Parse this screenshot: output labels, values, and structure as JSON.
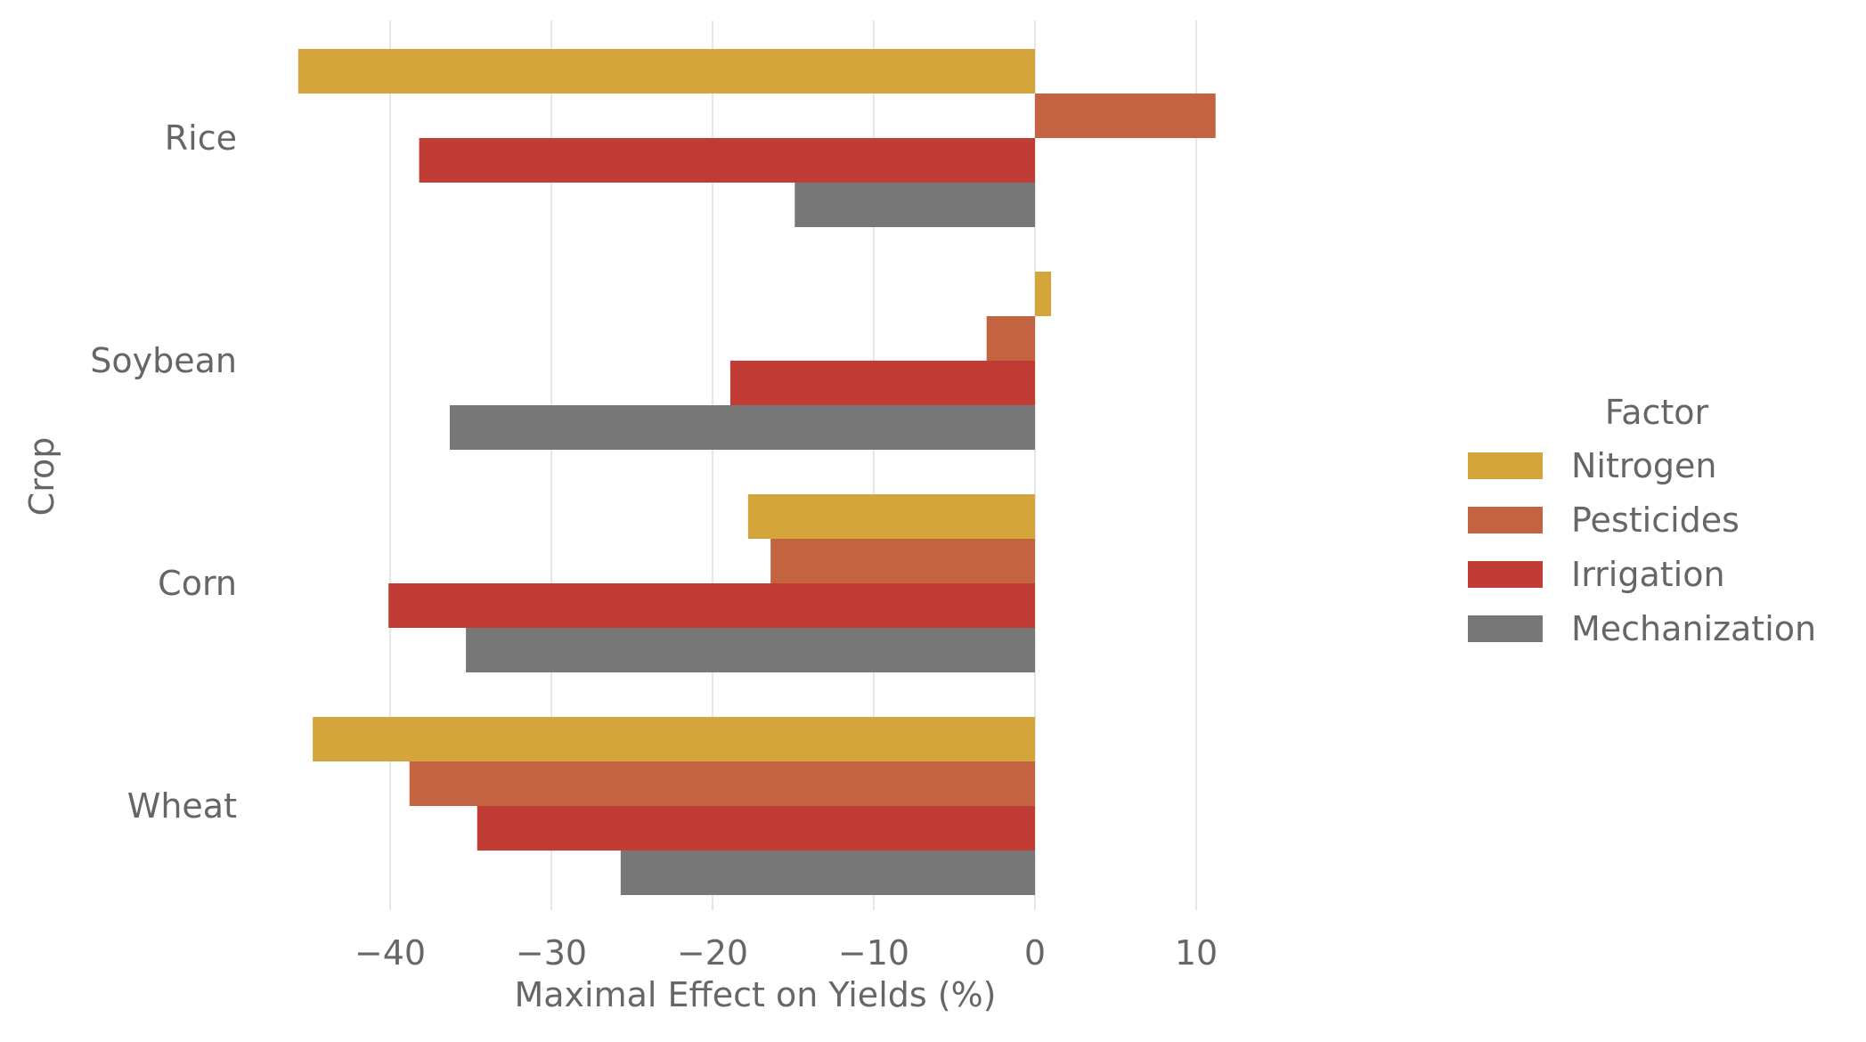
{
  "chart_data": {
    "type": "bar",
    "orientation": "horizontal",
    "title": "",
    "xlabel": "Maximal Effect on Yields (%)",
    "ylabel": "Crop",
    "xlim": [
      -46,
      11.2
    ],
    "xticks": [
      -40,
      -30,
      -20,
      -10,
      0,
      10
    ],
    "xtick_labels": [
      "−40",
      "−30",
      "−20",
      "−10",
      "0",
      "10"
    ],
    "grid": "x-major",
    "legend_position": "right",
    "legend_title": "Factor",
    "categories": [
      "Rice",
      "Soybean",
      "Corn",
      "Wheat"
    ],
    "series": [
      {
        "name": "Nitrogen",
        "color": "#D4A53B",
        "values": [
          -45.7,
          1.0,
          -17.8,
          -44.8
        ]
      },
      {
        "name": "Pesticides",
        "color": "#C46340",
        "values": [
          11.2,
          -3.0,
          -16.4,
          -38.8
        ]
      },
      {
        "name": "Irrigation",
        "color": "#C03C34",
        "values": [
          -38.2,
          -18.9,
          -40.1,
          -34.6
        ]
      },
      {
        "name": "Mechanization",
        "color": "#777777",
        "values": [
          -14.9,
          -36.3,
          -35.3,
          -25.7
        ]
      }
    ]
  }
}
